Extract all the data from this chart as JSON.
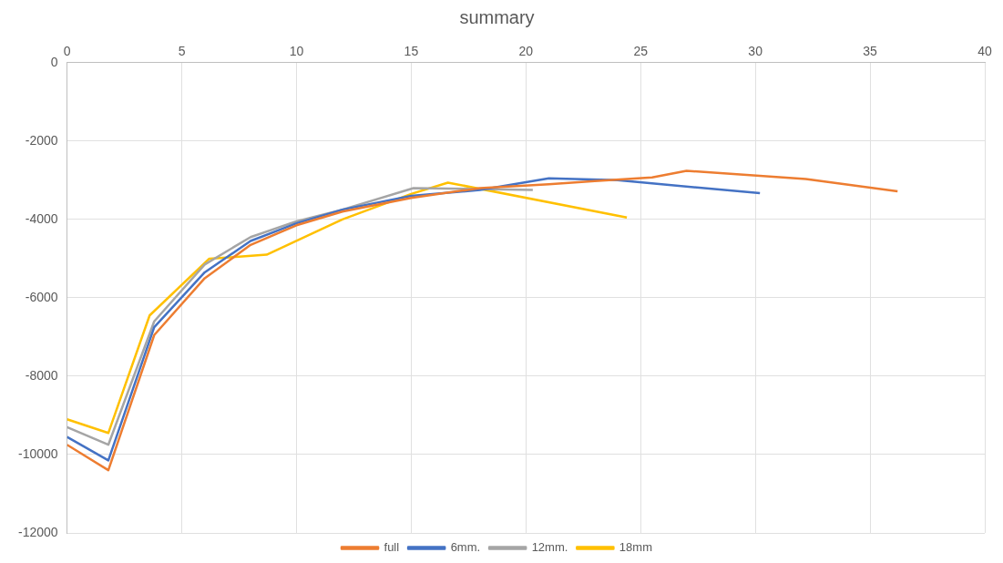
{
  "chart_data": {
    "type": "line",
    "title": "summary",
    "xlim": [
      0,
      40
    ],
    "xticks": [
      0,
      5,
      10,
      15,
      20,
      25,
      30,
      35,
      40
    ],
    "ylim": [
      -12000,
      0
    ],
    "yticks": [
      -12000,
      -10000,
      -8000,
      -6000,
      -4000,
      -2000,
      0
    ],
    "grid": true,
    "legend": "bottom",
    "marker": "none",
    "line_style": "solid",
    "series": [
      {
        "name": "full",
        "color": "#ed7d31",
        "x": [
          0,
          1.8,
          3.8,
          6,
          8,
          10,
          12,
          15,
          18,
          21,
          23,
          25.5,
          27,
          32.2,
          36.2
        ],
        "values": [
          -9750,
          -10400,
          -6950,
          -5500,
          -4650,
          -4150,
          -3800,
          -3450,
          -3200,
          -3100,
          -3020,
          -2930,
          -2760,
          -2970,
          -3280
        ]
      },
      {
        "name": "6mm.",
        "color": "#4472c4",
        "x": [
          0,
          1.8,
          3.8,
          6,
          8,
          10,
          12,
          15,
          18,
          21,
          24,
          30.2
        ],
        "values": [
          -9550,
          -10150,
          -6750,
          -5350,
          -4550,
          -4100,
          -3750,
          -3400,
          -3250,
          -2950,
          -3000,
          -3330
        ]
      },
      {
        "name": "12mm.",
        "color": "#a5a5a5",
        "x": [
          0,
          1.8,
          3.8,
          6,
          8,
          10,
          12,
          15.1,
          20.3
        ],
        "values": [
          -9300,
          -9750,
          -6600,
          -5150,
          -4450,
          -4050,
          -3750,
          -3200,
          -3250
        ]
      },
      {
        "name": "18mm",
        "color": "#ffc000",
        "x": [
          0,
          1.8,
          3.6,
          6.2,
          7.5,
          8.7,
          12,
          15,
          16.6,
          24.4
        ],
        "values": [
          -9100,
          -9450,
          -6450,
          -5000,
          -4950,
          -4900,
          -4000,
          -3350,
          -3060,
          -3950
        ]
      }
    ]
  }
}
